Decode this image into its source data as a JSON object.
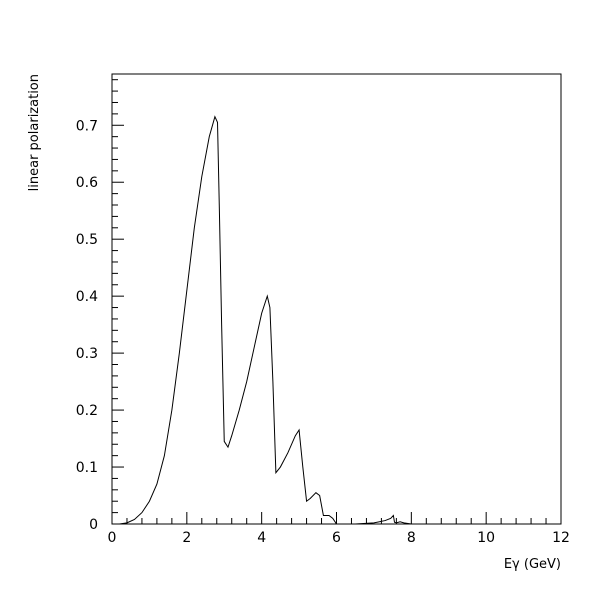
{
  "chart_data": {
    "type": "line",
    "title": "",
    "xlabel": "Eγ (GeV)",
    "ylabel": "linear polarization",
    "xlim": [
      0,
      12
    ],
    "ylim": [
      0,
      0.79
    ],
    "x_ticks": [
      0,
      2,
      4,
      6,
      8,
      10,
      12
    ],
    "x_tick_labels": [
      "0",
      "2",
      "4",
      "6",
      "8",
      "10",
      "12"
    ],
    "y_ticks": [
      0,
      0.1,
      0.2,
      0.3,
      0.4,
      0.5,
      0.6,
      0.7
    ],
    "y_tick_labels": [
      "0",
      "0.1",
      "0.2",
      "0.3",
      "0.4",
      "0.5",
      "0.6",
      "0.7"
    ],
    "grid": false,
    "legend": "none",
    "line_color": "#000000",
    "series": [
      {
        "x": [
          0.0,
          0.2,
          0.4,
          0.6,
          0.8,
          1.0,
          1.2,
          1.4,
          1.6,
          1.8,
          2.0,
          2.2,
          2.4,
          2.6,
          2.75,
          2.82,
          2.87,
          2.93,
          3.0,
          3.1,
          3.2,
          3.4,
          3.6,
          3.8,
          4.0,
          4.15,
          4.22,
          4.3,
          4.38,
          4.5,
          4.7,
          4.9,
          5.0,
          5.1,
          5.2,
          5.3,
          5.45,
          5.55,
          5.65,
          5.8,
          5.9,
          6.0,
          6.5,
          7.0,
          7.3,
          7.45,
          7.52,
          7.55,
          7.6,
          7.7,
          7.8,
          8.0,
          9.0,
          10.0,
          11.0,
          12.0
        ],
        "y": [
          0.0,
          0.0,
          0.002,
          0.008,
          0.02,
          0.04,
          0.07,
          0.12,
          0.2,
          0.3,
          0.41,
          0.52,
          0.61,
          0.68,
          0.715,
          0.705,
          0.55,
          0.35,
          0.145,
          0.135,
          0.155,
          0.2,
          0.25,
          0.31,
          0.37,
          0.4,
          0.38,
          0.25,
          0.09,
          0.1,
          0.125,
          0.155,
          0.165,
          0.1,
          0.04,
          0.045,
          0.055,
          0.05,
          0.015,
          0.015,
          0.01,
          0.0,
          0.0,
          0.002,
          0.006,
          0.01,
          0.015,
          0.003,
          0.002,
          0.004,
          0.002,
          0.0,
          0.0,
          0.0,
          0.0,
          0.0
        ]
      }
    ]
  }
}
